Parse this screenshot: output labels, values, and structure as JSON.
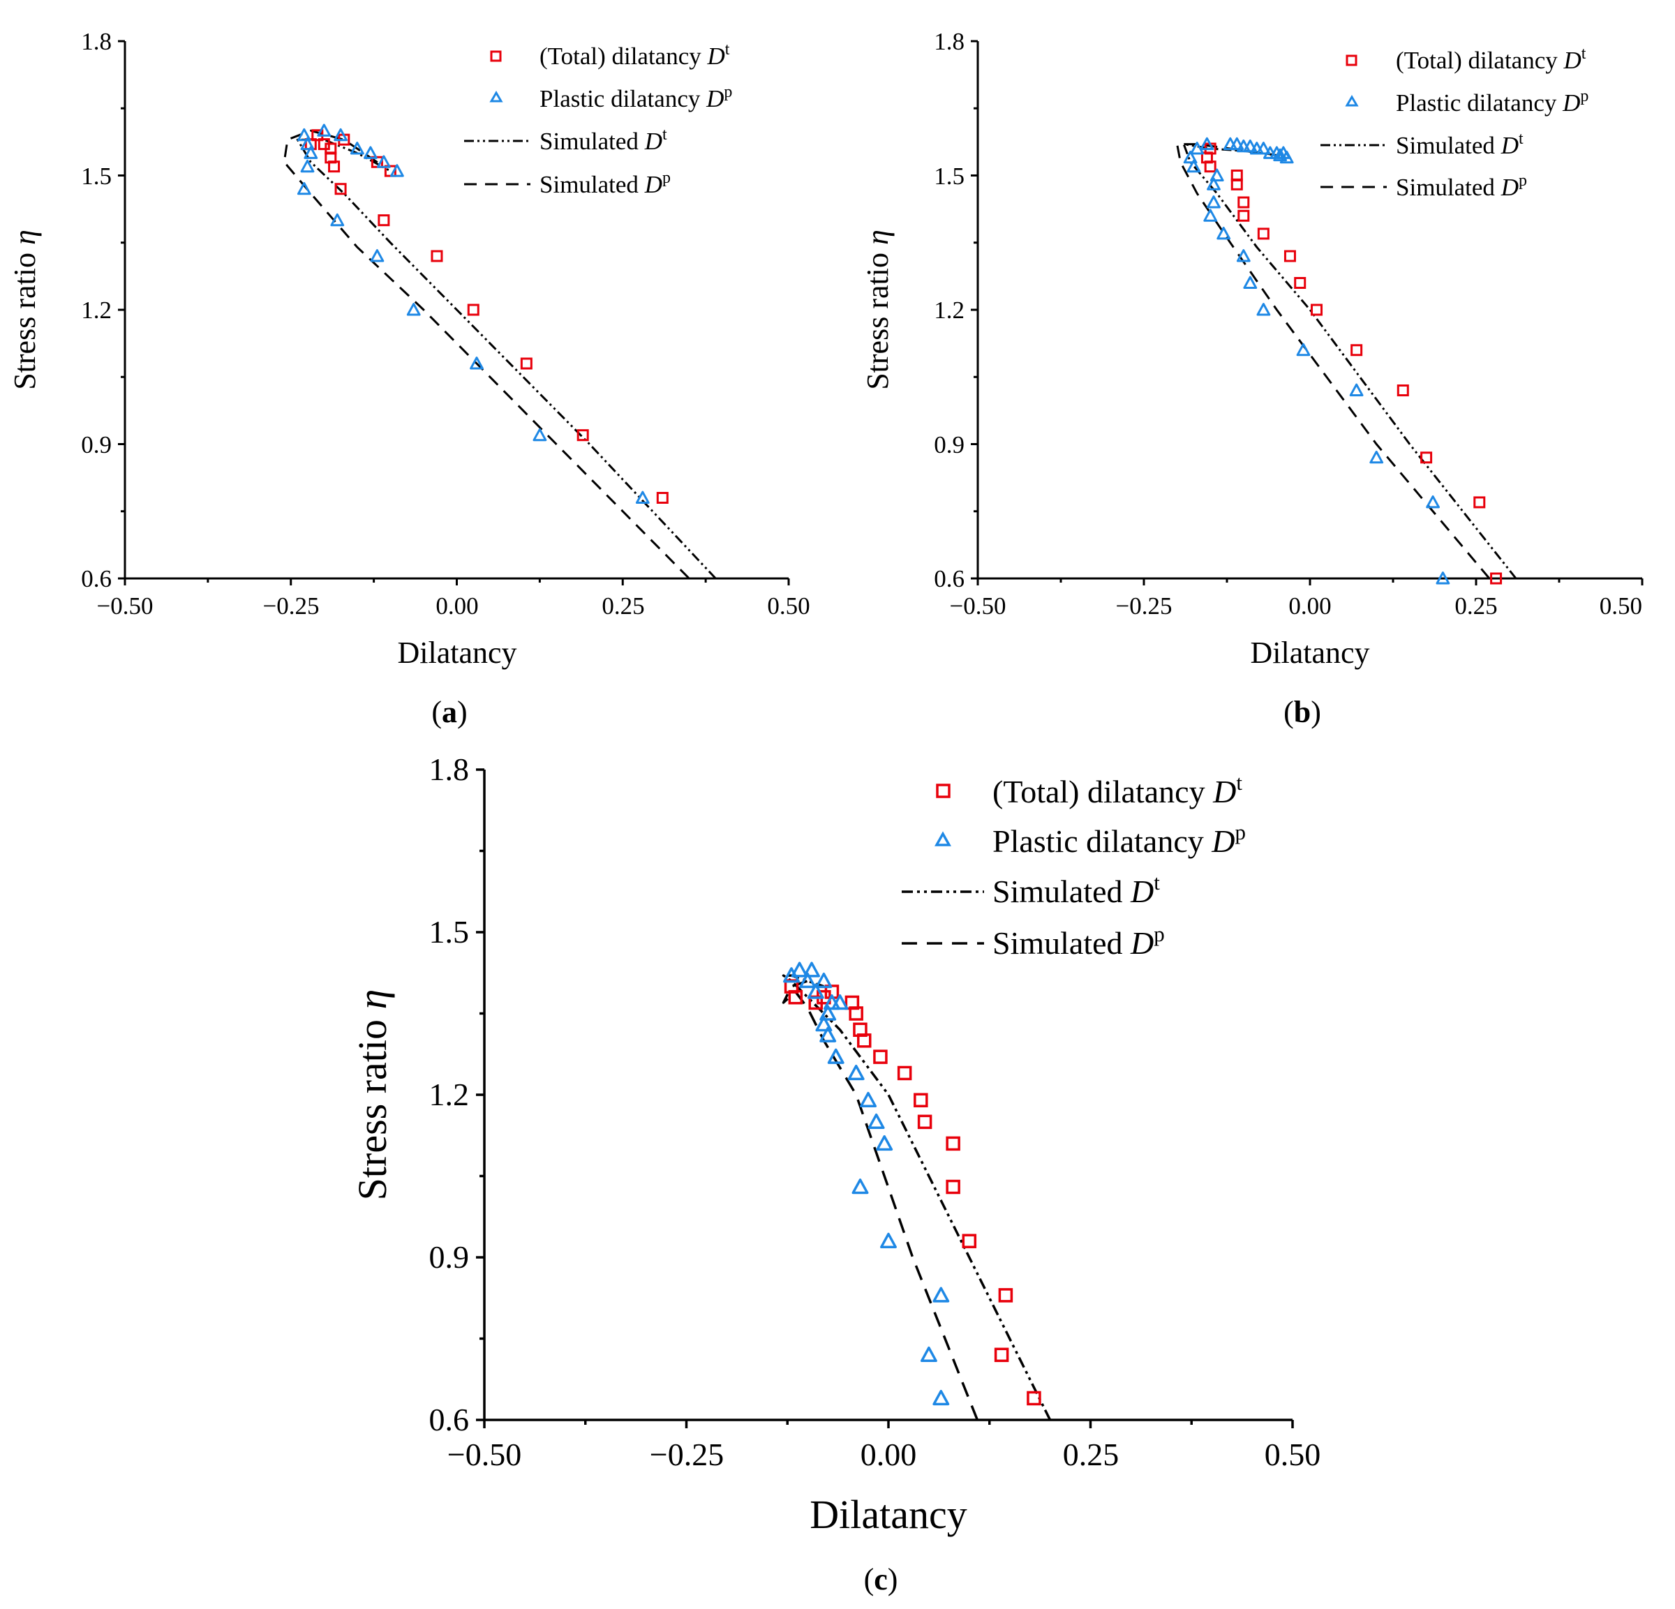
{
  "colors": {
    "total": "#e8000b",
    "plastic": "#1e88e5",
    "axis": "#000000"
  },
  "legend": {
    "total_label": "(Total) dilatancy ",
    "total_symbol": "D",
    "total_sup": "t",
    "plastic_label": "Plastic dilatancy ",
    "plastic_symbol": "D",
    "plastic_sup": "p",
    "sim_total_label": "Simulated ",
    "sim_total_symbol": "D",
    "sim_total_sup": "t",
    "sim_plastic_label": "Simulated ",
    "sim_plastic_symbol": "D",
    "sim_plastic_sup": "p"
  },
  "chart_data": [
    {
      "type": "scatter",
      "panel": "(a)",
      "panel_letter": "a",
      "xlabel": "Dilatancy",
      "ylabel": "Stress ratio ",
      "ylabel_symbol": "η",
      "xlim": [
        -0.5,
        0.5
      ],
      "ylim": [
        0.6,
        1.8
      ],
      "xticks": [
        -0.5,
        -0.25,
        0.0,
        0.25,
        0.5
      ],
      "xtick_labels": [
        "−0.50",
        "−0.25",
        "0.00",
        "0.25",
        "0.50"
      ],
      "yticks": [
        0.6,
        0.9,
        1.2,
        1.5,
        1.8
      ],
      "ytick_labels": [
        "0.6",
        "0.9",
        "1.2",
        "1.5",
        "1.8"
      ],
      "series": [
        {
          "name": "(Total) dilatancy Dt",
          "marker": "square",
          "x": [
            0.31,
            0.19,
            0.105,
            0.025,
            -0.03,
            -0.11,
            -0.175,
            -0.185,
            -0.19,
            -0.19,
            -0.2,
            -0.21,
            -0.17,
            -0.1,
            -0.12,
            -0.22
          ],
          "y": [
            0.78,
            0.92,
            1.08,
            1.2,
            1.32,
            1.4,
            1.47,
            1.52,
            1.54,
            1.56,
            1.57,
            1.59,
            1.58,
            1.51,
            1.53,
            1.57
          ]
        },
        {
          "name": "Plastic dilatancy Dp",
          "marker": "triangle",
          "x": [
            0.28,
            0.125,
            0.03,
            -0.065,
            -0.12,
            -0.18,
            -0.23,
            -0.225,
            -0.22,
            -0.225,
            -0.23,
            -0.2,
            -0.175,
            -0.15,
            -0.13,
            -0.11,
            -0.09
          ],
          "y": [
            0.78,
            0.92,
            1.08,
            1.2,
            1.32,
            1.4,
            1.47,
            1.52,
            1.55,
            1.57,
            1.59,
            1.6,
            1.59,
            1.56,
            1.55,
            1.53,
            1.51
          ]
        },
        {
          "name": "Simulated Dt",
          "line": "dashdot",
          "x": [
            0.39,
            0.2,
            0.0,
            -0.1,
            -0.17,
            -0.22,
            -0.24,
            -0.2,
            -0.15,
            -0.1
          ],
          "y": [
            0.6,
            0.9,
            1.2,
            1.35,
            1.46,
            1.53,
            1.58,
            1.58,
            1.55,
            1.51
          ]
        },
        {
          "name": "Simulated Dp",
          "line": "dash",
          "x": [
            0.35,
            0.15,
            -0.05,
            -0.15,
            -0.22,
            -0.26,
            -0.255,
            -0.22,
            -0.17,
            -0.11
          ],
          "y": [
            0.6,
            0.9,
            1.2,
            1.34,
            1.46,
            1.53,
            1.58,
            1.6,
            1.58,
            1.52
          ]
        }
      ]
    },
    {
      "type": "scatter",
      "panel": "(b)",
      "panel_letter": "b",
      "xlabel": "Dilatancy",
      "ylabel": "Stress ratio ",
      "ylabel_symbol": "η",
      "xlim": [
        -0.5,
        0.5
      ],
      "ylim": [
        0.6,
        1.8
      ],
      "xticks": [
        -0.5,
        -0.25,
        0.0,
        0.25,
        0.5
      ],
      "xtick_labels": [
        "−0.50",
        "−0.25",
        "0.00",
        "0.25",
        "0.50"
      ],
      "yticks": [
        0.6,
        0.9,
        1.2,
        1.5,
        1.8
      ],
      "ytick_labels": [
        "0.6",
        "0.9",
        "1.2",
        "1.5",
        "1.8"
      ],
      "series": [
        {
          "name": "(Total) dilatancy Dt",
          "marker": "square",
          "x": [
            0.28,
            0.255,
            0.175,
            0.14,
            0.07,
            0.01,
            -0.015,
            -0.03,
            -0.07,
            -0.1,
            -0.1,
            -0.11,
            -0.11,
            -0.15,
            -0.155,
            -0.15
          ],
          "y": [
            0.6,
            0.77,
            0.87,
            1.02,
            1.11,
            1.2,
            1.26,
            1.32,
            1.37,
            1.41,
            1.44,
            1.48,
            1.5,
            1.52,
            1.54,
            1.56
          ]
        },
        {
          "name": "Plastic dilatancy Dp",
          "marker": "triangle",
          "x": [
            0.2,
            0.185,
            0.1,
            0.07,
            -0.01,
            -0.07,
            -0.09,
            -0.1,
            -0.13,
            -0.15,
            -0.145,
            -0.145,
            -0.14,
            -0.175,
            -0.18,
            -0.17,
            -0.155,
            -0.12,
            -0.11,
            -0.1,
            -0.09,
            -0.08,
            -0.07,
            -0.06,
            -0.05,
            -0.045,
            -0.04,
            -0.035
          ],
          "y": [
            0.6,
            0.77,
            0.87,
            1.02,
            1.11,
            1.2,
            1.26,
            1.32,
            1.37,
            1.41,
            1.44,
            1.48,
            1.5,
            1.52,
            1.54,
            1.56,
            1.57,
            1.57,
            1.57,
            1.565,
            1.565,
            1.56,
            1.56,
            1.55,
            1.55,
            1.545,
            1.55,
            1.54
          ]
        },
        {
          "name": "Simulated Dt",
          "line": "dashdot",
          "x": [
            0.31,
            0.15,
            0.0,
            -0.08,
            -0.14,
            -0.18,
            -0.19,
            -0.15,
            -0.1,
            -0.05,
            -0.03
          ],
          "y": [
            0.6,
            0.9,
            1.2,
            1.34,
            1.46,
            1.53,
            1.57,
            1.56,
            1.555,
            1.545,
            1.54
          ]
        },
        {
          "name": "Simulated Dp",
          "line": "dash",
          "x": [
            0.27,
            0.1,
            -0.05,
            -0.12,
            -0.17,
            -0.195,
            -0.2,
            -0.17,
            -0.12,
            -0.07,
            -0.03
          ],
          "y": [
            0.6,
            0.9,
            1.2,
            1.35,
            1.46,
            1.53,
            1.57,
            1.57,
            1.56,
            1.55,
            1.54
          ]
        }
      ]
    },
    {
      "type": "scatter",
      "panel": "(c)",
      "panel_letter": "c",
      "xlabel": "Dilatancy",
      "ylabel": "Stress ratio ",
      "ylabel_symbol": "η",
      "xlim": [
        -0.5,
        0.5
      ],
      "ylim": [
        0.6,
        1.8
      ],
      "xticks": [
        -0.5,
        -0.25,
        0.0,
        0.25,
        0.5
      ],
      "xtick_labels": [
        "−0.50",
        "−0.25",
        "0.00",
        "0.25",
        "0.50"
      ],
      "yticks": [
        0.6,
        0.9,
        1.2,
        1.5,
        1.8
      ],
      "ytick_labels": [
        "0.6",
        "0.9",
        "1.2",
        "1.5",
        "1.8"
      ],
      "series": [
        {
          "name": "(Total) dilatancy Dt",
          "marker": "square",
          "x": [
            0.18,
            0.14,
            0.145,
            0.1,
            0.08,
            0.08,
            0.045,
            0.04,
            0.02,
            -0.01,
            -0.03,
            -0.035,
            -0.04,
            -0.045,
            -0.07,
            -0.08,
            -0.09,
            -0.115,
            -0.12
          ],
          "y": [
            0.64,
            0.72,
            0.83,
            0.93,
            1.03,
            1.11,
            1.15,
            1.19,
            1.24,
            1.27,
            1.3,
            1.32,
            1.35,
            1.37,
            1.39,
            1.38,
            1.37,
            1.38,
            1.4
          ]
        },
        {
          "name": "Plastic dilatancy Dp",
          "marker": "triangle",
          "x": [
            0.065,
            0.05,
            0.065,
            0.0,
            -0.035,
            -0.005,
            -0.015,
            -0.025,
            -0.04,
            -0.065,
            -0.075,
            -0.08,
            -0.075,
            -0.07,
            -0.06,
            -0.09,
            -0.1,
            -0.12,
            -0.11,
            -0.095,
            -0.08
          ],
          "y": [
            0.64,
            0.72,
            0.83,
            0.93,
            1.03,
            1.11,
            1.15,
            1.19,
            1.24,
            1.27,
            1.31,
            1.33,
            1.35,
            1.37,
            1.37,
            1.39,
            1.41,
            1.42,
            1.43,
            1.43,
            1.41
          ]
        },
        {
          "name": "Simulated Dt",
          "line": "dashdot",
          "x": [
            0.2,
            0.1,
            0.0,
            -0.06,
            -0.1,
            -0.12,
            -0.13,
            -0.12,
            -0.1,
            -0.08
          ],
          "y": [
            0.6,
            0.9,
            1.2,
            1.32,
            1.38,
            1.41,
            1.42,
            1.42,
            1.41,
            1.4
          ]
        },
        {
          "name": "Simulated Dp",
          "line": "dash",
          "x": [
            0.11,
            0.03,
            -0.04,
            -0.08,
            -0.1,
            -0.115,
            -0.13,
            -0.12,
            -0.1
          ],
          "y": [
            0.6,
            0.9,
            1.2,
            1.3,
            1.36,
            1.39,
            1.37,
            1.4,
            1.41
          ]
        }
      ]
    }
  ]
}
